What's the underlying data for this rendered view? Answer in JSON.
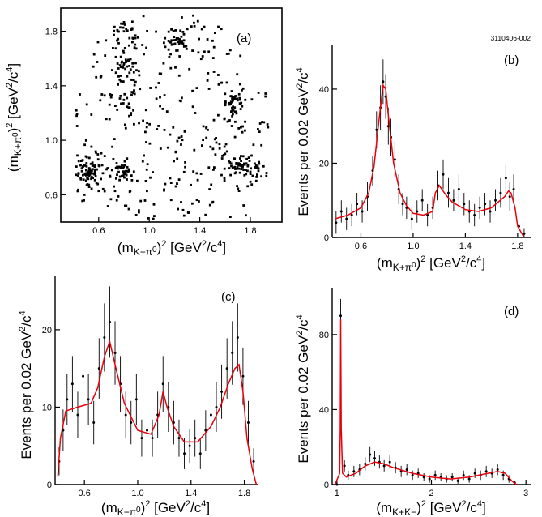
{
  "figure_code": "3110406-002",
  "panels": {
    "a": {
      "tag": "(a)",
      "xlabel": "(mK−π0)2 [GeV2/c4]",
      "ylabel": "(mK+π0)2 [GeV2/c4]"
    },
    "b": {
      "tag": "(b)",
      "xlabel": "(mK+π0)2 [GeV2/c4]",
      "ylabel": "Events per 0.02 GeV2/c4"
    },
    "c": {
      "tag": "(c)",
      "xlabel": "(mK−π0)2 [GeV2/c4]",
      "ylabel": "Events per 0.02 GeV2/c4"
    },
    "d": {
      "tag": "(d)",
      "xlabel": "(mK+K−)2 [GeV2/c4]",
      "ylabel": "Events per 0.02 GeV2/c4"
    }
  },
  "chart_data": [
    {
      "type": "scatter",
      "panel": "a",
      "xlabel": "(mK−π0)2 [GeV2/c4]",
      "ylabel": "(mK+π0)2 [GeV2/c4]",
      "xlim": [
        0.3,
        2.05
      ],
      "ylim": [
        0.4,
        1.97
      ],
      "xticks": [
        "0.6",
        "1.0",
        "1.4",
        "1.8"
      ],
      "xtick_values": [
        0.6,
        1.0,
        1.4,
        1.8
      ],
      "yticks": [
        "0.6",
        "1.0",
        "1.4",
        "1.8"
      ],
      "ytick_values": [
        0.6,
        1.0,
        1.4,
        1.8
      ],
      "clusters": [
        {
          "x": 0.52,
          "y": 0.77,
          "sx": 0.06,
          "sy": 0.05,
          "n": 70
        },
        {
          "x": 0.78,
          "y": 0.8,
          "sx": 0.05,
          "sy": 0.05,
          "n": 35
        },
        {
          "x": 1.75,
          "y": 0.8,
          "sx": 0.08,
          "sy": 0.05,
          "n": 70
        },
        {
          "x": 1.67,
          "y": 1.27,
          "sx": 0.04,
          "sy": 0.04,
          "n": 35
        },
        {
          "x": 1.22,
          "y": 1.73,
          "sx": 0.04,
          "sy": 0.04,
          "n": 32
        },
        {
          "x": 0.82,
          "y": 1.78,
          "sx": 0.06,
          "sy": 0.05,
          "n": 25
        },
        {
          "x": 0.79,
          "y": 1.45,
          "sx": 0.06,
          "sy": 0.15,
          "n": 45
        }
      ],
      "diffuse_points": 340
    },
    {
      "type": "histogram",
      "panel": "b",
      "xlabel": "(mK+π0)2 [GeV2/c4]",
      "ylabel": "Events per 0.02 GeV2/c4",
      "xlim": [
        0.38,
        1.9
      ],
      "ylim": [
        0,
        52
      ],
      "xticks": [
        "0.6",
        "1.0",
        "1.4",
        "1.8"
      ],
      "xtick_values": [
        0.6,
        1.0,
        1.4,
        1.8
      ],
      "yticks": [
        "0",
        "20",
        "40"
      ],
      "ytick_values": [
        0,
        20,
        40
      ],
      "fit_curve": {
        "x": [
          0.4,
          0.5,
          0.6,
          0.66,
          0.7,
          0.74,
          0.77,
          0.79,
          0.81,
          0.85,
          0.9,
          0.95,
          1.0,
          1.08,
          1.15,
          1.17,
          1.2,
          1.25,
          1.3,
          1.4,
          1.5,
          1.6,
          1.7,
          1.73,
          1.75,
          1.78,
          1.8,
          1.85
        ],
        "y": [
          5,
          6,
          8,
          12,
          19,
          32,
          41,
          40,
          33,
          20,
          12,
          8.5,
          6.5,
          6,
          7,
          12,
          14,
          11.5,
          9.5,
          7.5,
          7,
          8,
          11,
          12.5,
          12,
          8,
          3,
          0
        ]
      },
      "points": {
        "x": [
          0.41,
          0.45,
          0.49,
          0.53,
          0.57,
          0.61,
          0.65,
          0.69,
          0.72,
          0.75,
          0.77,
          0.79,
          0.81,
          0.83,
          0.86,
          0.89,
          0.92,
          0.95,
          0.99,
          1.03,
          1.07,
          1.11,
          1.15,
          1.19,
          1.23,
          1.27,
          1.31,
          1.35,
          1.39,
          1.43,
          1.47,
          1.51,
          1.55,
          1.59,
          1.63,
          1.67,
          1.71,
          1.74,
          1.77,
          1.81,
          1.85
        ],
        "y": [
          4,
          7,
          5,
          6,
          9,
          7,
          11,
          18,
          29,
          35,
          42,
          38,
          30,
          27,
          21,
          13,
          9,
          8,
          5,
          7,
          10,
          6,
          8,
          14,
          17,
          12,
          10,
          13,
          9,
          7,
          6,
          8,
          9,
          7,
          10,
          12,
          16,
          11,
          13,
          3,
          1
        ],
        "err": [
          3,
          3,
          3,
          3,
          3,
          3,
          4,
          4,
          5,
          6,
          6,
          6,
          5,
          5,
          5,
          4,
          3,
          3,
          3,
          3,
          3,
          3,
          3,
          4,
          4,
          4,
          3,
          4,
          3,
          3,
          3,
          3,
          3,
          3,
          3,
          4,
          4,
          4,
          4,
          2,
          1.5
        ]
      }
    },
    {
      "type": "histogram",
      "panel": "c",
      "xlabel": "(mK−π0)2 [GeV2/c4]",
      "ylabel": "Events per 0.02 GeV2/c4",
      "xlim": [
        0.38,
        1.9
      ],
      "ylim": [
        0,
        27
      ],
      "xticks": [
        "0.6",
        "1.0",
        "1.4",
        "1.8"
      ],
      "xtick_values": [
        0.6,
        1.0,
        1.4,
        1.8
      ],
      "yticks": [
        "0",
        "10",
        "20"
      ],
      "ytick_values": [
        0,
        10,
        20
      ],
      "fit_curve": {
        "x": [
          0.4,
          0.42,
          0.46,
          0.55,
          0.65,
          0.7,
          0.75,
          0.79,
          0.83,
          0.9,
          1.0,
          1.1,
          1.16,
          1.19,
          1.22,
          1.27,
          1.35,
          1.45,
          1.55,
          1.62,
          1.68,
          1.73,
          1.76,
          1.79,
          1.82,
          1.86,
          1.89
        ],
        "y": [
          1,
          6,
          9.5,
          10,
          10.5,
          12.5,
          16.5,
          18.5,
          15.5,
          10.5,
          7,
          6.5,
          9,
          12,
          10,
          7.5,
          5.5,
          5.5,
          7.5,
          10,
          13,
          15,
          15.5,
          12,
          6,
          2,
          0
        ]
      },
      "points": {
        "x": [
          0.41,
          0.44,
          0.47,
          0.51,
          0.55,
          0.59,
          0.63,
          0.67,
          0.71,
          0.75,
          0.79,
          0.83,
          0.87,
          0.91,
          0.95,
          0.99,
          1.03,
          1.07,
          1.11,
          1.15,
          1.19,
          1.23,
          1.27,
          1.31,
          1.35,
          1.39,
          1.43,
          1.47,
          1.51,
          1.55,
          1.59,
          1.63,
          1.67,
          1.71,
          1.75,
          1.79,
          1.83,
          1.87
        ],
        "y": [
          3,
          7,
          11,
          13,
          9,
          14,
          11,
          8,
          15,
          19,
          21,
          17,
          13,
          9,
          8,
          11,
          6,
          7,
          6,
          9,
          13,
          10,
          8,
          6,
          4,
          5,
          6,
          4,
          7,
          9,
          10,
          12,
          15,
          17,
          19,
          14,
          8,
          3
        ],
        "err": [
          1.8,
          2.7,
          3.3,
          3.6,
          3,
          3.7,
          3.3,
          2.8,
          3.9,
          4.4,
          4.6,
          4.1,
          3.6,
          3,
          2.8,
          3.3,
          2.4,
          2.6,
          2.4,
          3,
          3.6,
          3.2,
          2.8,
          2.4,
          2,
          2.2,
          2.4,
          2,
          2.6,
          3,
          3.2,
          3.5,
          3.9,
          4.1,
          4.4,
          3.7,
          2.8,
          1.7
        ]
      }
    },
    {
      "type": "histogram",
      "panel": "d",
      "xlabel": "(mK+K−)2 [GeV2/c4]",
      "ylabel": "Events per 0.02 GeV2/c4",
      "xlim": [
        0.95,
        3.05
      ],
      "ylim": [
        0,
        105
      ],
      "xticks": [
        "1",
        "2",
        "3"
      ],
      "xtick_values": [
        1,
        2,
        3
      ],
      "yticks": [
        "0",
        "40",
        "80"
      ],
      "ytick_values": [
        0,
        40,
        80
      ],
      "fit_curve": {
        "x": [
          0.98,
          1.03,
          1.036,
          1.04,
          1.046,
          1.06,
          1.1,
          1.2,
          1.3,
          1.4,
          1.5,
          1.6,
          1.8,
          2.0,
          2.2,
          2.4,
          2.6,
          2.7,
          2.78,
          2.85,
          2.9
        ],
        "y": [
          0,
          6,
          30,
          88,
          30,
          6,
          4,
          6,
          10,
          12,
          11,
          9,
          6,
          4,
          3,
          4,
          6,
          7,
          6,
          2,
          0
        ]
      },
      "points": {
        "x": [
          1.0,
          1.04,
          1.08,
          1.12,
          1.18,
          1.24,
          1.3,
          1.35,
          1.4,
          1.45,
          1.5,
          1.56,
          1.62,
          1.68,
          1.74,
          1.8,
          1.86,
          1.92,
          1.98,
          2.04,
          2.1,
          2.16,
          2.22,
          2.28,
          2.34,
          2.4,
          2.46,
          2.52,
          2.58,
          2.64,
          2.7,
          2.76,
          2.82,
          2.88
        ],
        "y": [
          0,
          90,
          10,
          5,
          7,
          8,
          11,
          16,
          14,
          12,
          10,
          12,
          9,
          7,
          8,
          5,
          6,
          4,
          3,
          5,
          4,
          3,
          4,
          2,
          5,
          3,
          6,
          5,
          7,
          6,
          8,
          5,
          3,
          1
        ],
        "err": [
          1,
          9,
          3,
          2.5,
          3,
          3,
          3.5,
          4,
          4,
          3.5,
          3,
          3.5,
          3,
          3,
          3,
          2.5,
          2.5,
          2,
          2,
          2.5,
          2,
          2,
          2,
          1.5,
          2.5,
          2,
          2.5,
          2.5,
          3,
          2.5,
          3,
          2.5,
          2,
          1
        ]
      }
    }
  ]
}
